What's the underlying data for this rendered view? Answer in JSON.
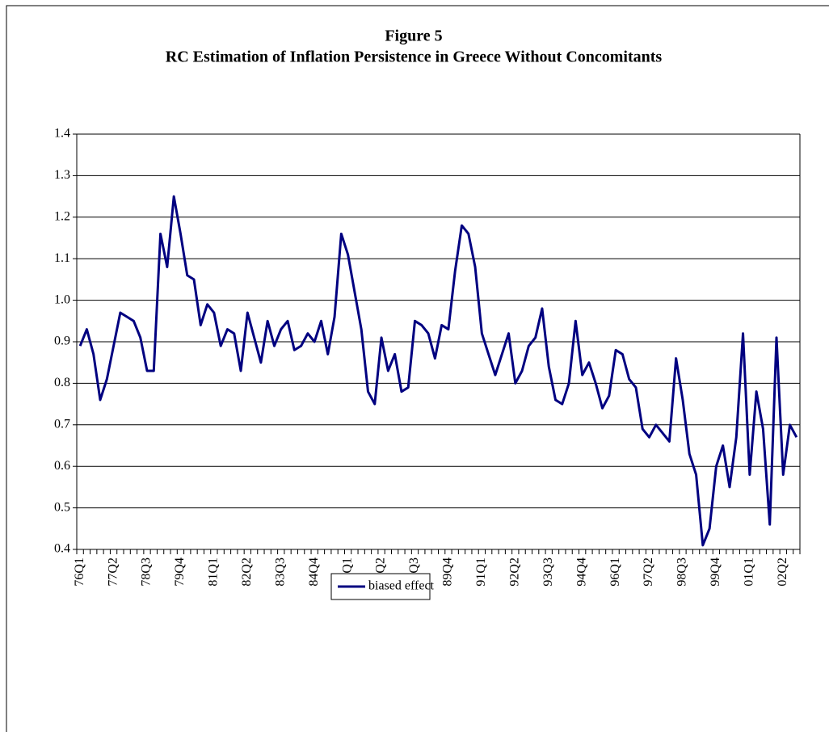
{
  "chart_data": {
    "type": "line",
    "title": "Figure 5",
    "subtitle": "RC Estimation of Inflation Persistence in Greece Without Concomitants",
    "categories": [
      "76Q1",
      null,
      null,
      null,
      null,
      "77Q2",
      null,
      null,
      null,
      null,
      "78Q3",
      null,
      null,
      null,
      null,
      "79Q4",
      null,
      null,
      null,
      null,
      "81Q1",
      null,
      null,
      null,
      null,
      "82Q2",
      null,
      null,
      null,
      null,
      "83Q3",
      null,
      null,
      null,
      null,
      "84Q4",
      null,
      null,
      null,
      null,
      "86Q1",
      null,
      null,
      null,
      null,
      "87Q2",
      null,
      null,
      null,
      null,
      "88Q3",
      null,
      null,
      null,
      null,
      "89Q4",
      null,
      null,
      null,
      null,
      "91Q1",
      null,
      null,
      null,
      null,
      "92Q2",
      null,
      null,
      null,
      null,
      "93Q3",
      null,
      null,
      null,
      null,
      "94Q4",
      null,
      null,
      null,
      null,
      "96Q1",
      null,
      null,
      null,
      null,
      "97Q2",
      null,
      null,
      null,
      null,
      "98Q3",
      null,
      null,
      null,
      null,
      "99Q4",
      null,
      null,
      null,
      null,
      "01Q1",
      null,
      null,
      null,
      null,
      "02Q2",
      null,
      null
    ],
    "series": [
      {
        "name": "biased effect",
        "color": "#000080",
        "values": [
          0.89,
          0.93,
          0.87,
          0.76,
          0.81,
          0.89,
          0.97,
          0.96,
          0.95,
          0.91,
          0.83,
          0.83,
          1.16,
          1.08,
          1.25,
          1.16,
          1.06,
          1.05,
          0.94,
          0.99,
          0.97,
          0.89,
          0.93,
          0.92,
          0.83,
          0.97,
          0.91,
          0.85,
          0.95,
          0.89,
          0.93,
          0.95,
          0.88,
          0.89,
          0.92,
          0.9,
          0.95,
          0.87,
          0.96,
          1.16,
          1.11,
          1.02,
          0.93,
          0.78,
          0.75,
          0.91,
          0.83,
          0.87,
          0.78,
          0.79,
          0.95,
          0.94,
          0.92,
          0.86,
          0.94,
          0.93,
          1.07,
          1.18,
          1.16,
          1.08,
          0.92,
          0.87,
          0.82,
          0.87,
          0.92,
          0.8,
          0.83,
          0.89,
          0.91,
          0.98,
          0.84,
          0.76,
          0.75,
          0.8,
          0.95,
          0.82,
          0.85,
          0.8,
          0.74,
          0.77,
          0.88,
          0.87,
          0.81,
          0.79,
          0.69,
          0.67,
          0.7,
          0.68,
          0.66,
          0.86,
          0.76,
          0.63,
          0.58,
          0.41,
          0.45,
          0.6,
          0.65,
          0.55,
          0.67,
          0.92,
          0.58,
          0.78,
          0.69,
          0.46,
          0.91,
          0.58,
          0.7,
          0.67
        ]
      }
    ],
    "ylim": [
      0.4,
      1.4
    ],
    "yticks": [
      0.4,
      0.5,
      0.6,
      0.7,
      0.8,
      0.9,
      {
        "value": 1,
        "label": "1.0"
      },
      1.1,
      1.2,
      1.3,
      1.4
    ],
    "grid": true,
    "legend": "bottom"
  }
}
